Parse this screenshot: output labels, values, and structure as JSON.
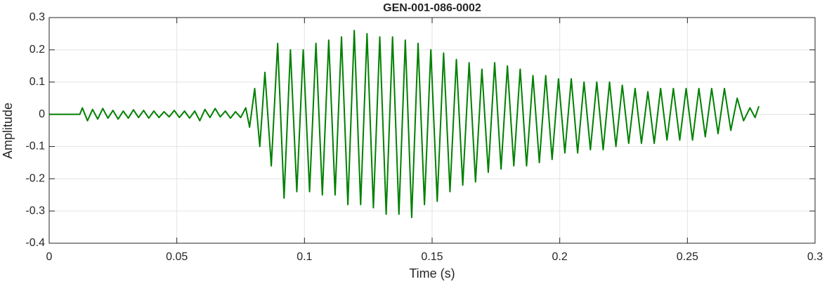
{
  "chart_data": {
    "type": "line",
    "title": "GEN-001-086-0002",
    "x_label": "Time (s)",
    "y_label": "Amplitude",
    "xlim": [
      0,
      0.3
    ],
    "xticks": [
      0,
      0.05,
      0.1,
      0.15,
      0.2,
      0.25,
      0.3
    ],
    "ylim": [
      -0.4,
      0.3
    ],
    "yticks": [
      -0.4,
      -0.3,
      -0.2,
      -0.1,
      0,
      0.1,
      0.2,
      0.3
    ],
    "grid": true,
    "series": [
      {
        "color": "#008000",
        "x": [
          0,
          0.012,
          0.013,
          0.015,
          0.017,
          0.019,
          0.021,
          0.023,
          0.025,
          0.027,
          0.029,
          0.031,
          0.033,
          0.035,
          0.037,
          0.039,
          0.041,
          0.043,
          0.045,
          0.047,
          0.049,
          0.051,
          0.053,
          0.055,
          0.057,
          0.059,
          0.061,
          0.063,
          0.065,
          0.067,
          0.069,
          0.071,
          0.073,
          0.075,
          0.077,
          0.0785,
          0.0805,
          0.0825,
          0.0845,
          0.087,
          0.0895,
          0.092,
          0.0945,
          0.097,
          0.0995,
          0.102,
          0.1045,
          0.107,
          0.1095,
          0.112,
          0.1145,
          0.117,
          0.1195,
          0.122,
          0.1245,
          0.127,
          0.1295,
          0.132,
          0.1345,
          0.137,
          0.1395,
          0.142,
          0.1445,
          0.147,
          0.1495,
          0.152,
          0.1545,
          0.157,
          0.1595,
          0.162,
          0.1645,
          0.167,
          0.1695,
          0.172,
          0.1745,
          0.177,
          0.1795,
          0.182,
          0.1845,
          0.187,
          0.1895,
          0.192,
          0.1945,
          0.197,
          0.1995,
          0.202,
          0.2045,
          0.207,
          0.2095,
          0.212,
          0.2145,
          0.217,
          0.2195,
          0.222,
          0.2245,
          0.227,
          0.2295,
          0.232,
          0.2345,
          0.237,
          0.2395,
          0.242,
          0.2445,
          0.247,
          0.2495,
          0.252,
          0.2545,
          0.257,
          0.2595,
          0.262,
          0.2645,
          0.267,
          0.2695,
          0.272,
          0.2745,
          0.2765,
          0.278
        ],
        "values": [
          0,
          0,
          0.02,
          -0.02,
          0.015,
          -0.015,
          0.018,
          -0.012,
          0.012,
          -0.015,
          0.01,
          -0.012,
          0.014,
          -0.01,
          0.012,
          -0.012,
          0.01,
          -0.01,
          0.008,
          -0.008,
          0.012,
          -0.01,
          0.01,
          -0.012,
          0.01,
          -0.02,
          0.015,
          -0.01,
          0.018,
          -0.008,
          0.01,
          -0.012,
          0.008,
          -0.01,
          0.02,
          -0.04,
          0.08,
          -0.1,
          0.13,
          -0.16,
          0.22,
          -0.26,
          0.2,
          -0.24,
          0.2,
          -0.24,
          0.22,
          -0.25,
          0.23,
          -0.25,
          0.24,
          -0.28,
          0.26,
          -0.28,
          0.25,
          -0.29,
          0.24,
          -0.31,
          0.24,
          -0.31,
          0.23,
          -0.32,
          0.22,
          -0.28,
          0.2,
          -0.27,
          0.19,
          -0.24,
          0.17,
          -0.22,
          0.16,
          -0.21,
          0.14,
          -0.18,
          0.16,
          -0.17,
          0.15,
          -0.16,
          0.14,
          -0.16,
          0.12,
          -0.15,
          0.12,
          -0.14,
          0.11,
          -0.12,
          0.11,
          -0.12,
          0.1,
          -0.11,
          0.1,
          -0.11,
          0.1,
          -0.1,
          0.09,
          -0.09,
          0.08,
          -0.09,
          0.07,
          -0.09,
          0.08,
          -0.08,
          0.08,
          -0.08,
          0.08,
          -0.08,
          0.08,
          -0.07,
          0.08,
          -0.06,
          0.08,
          -0.05,
          0.05,
          -0.02,
          0.02,
          -0.01,
          0.025
        ]
      }
    ]
  }
}
